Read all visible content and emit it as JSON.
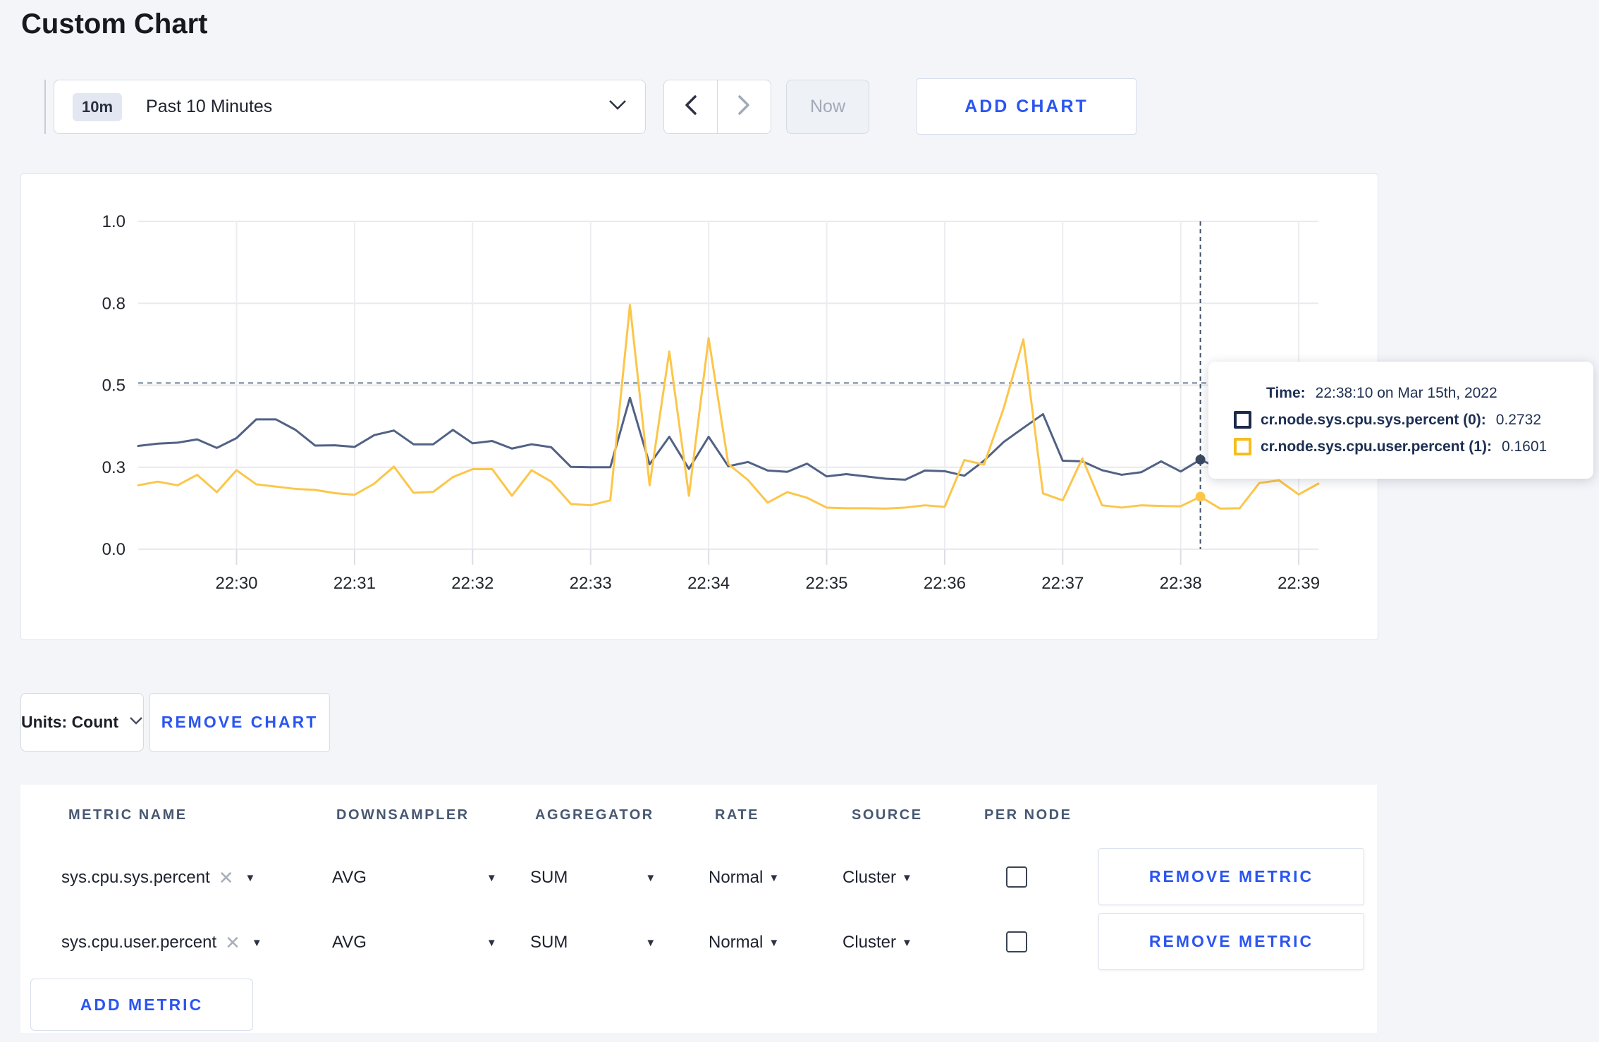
{
  "page": {
    "title": "Custom Chart"
  },
  "controls": {
    "range_badge": "10m",
    "range_label": "Past 10 Minutes",
    "now_label": "Now",
    "add_chart_label": "ADD CHART"
  },
  "chart_data": {
    "type": "line",
    "title": "",
    "xlabel": "",
    "ylabel": "",
    "ylim": [
      0,
      1
    ],
    "grid": true,
    "x_start": "22:29:10",
    "x_end": "22:39:10",
    "interval_seconds": 10,
    "yticks": [
      {
        "v": 0.0,
        "label": "0.0"
      },
      {
        "v": 0.25,
        "label": "0.3"
      },
      {
        "v": 0.5,
        "label": "0.5"
      },
      {
        "v": 0.75,
        "label": "0.8"
      },
      {
        "v": 1.0,
        "label": "1.0"
      }
    ],
    "xticks": [
      {
        "i": 5,
        "label": "22:30"
      },
      {
        "i": 11,
        "label": "22:31"
      },
      {
        "i": 17,
        "label": "22:32"
      },
      {
        "i": 23,
        "label": "22:33"
      },
      {
        "i": 29,
        "label": "22:34"
      },
      {
        "i": 35,
        "label": "22:35"
      },
      {
        "i": 41,
        "label": "22:36"
      },
      {
        "i": 47,
        "label": "22:37"
      },
      {
        "i": 53,
        "label": "22:38"
      },
      {
        "i": 59,
        "label": "22:39"
      }
    ],
    "series": [
      {
        "name": "cr.node.sys.cpu.sys.percent",
        "color": "#516284",
        "values": [
          0.315,
          0.322,
          0.325,
          0.335,
          0.309,
          0.339,
          0.396,
          0.396,
          0.364,
          0.316,
          0.317,
          0.312,
          0.348,
          0.362,
          0.32,
          0.32,
          0.364,
          0.323,
          0.33,
          0.307,
          0.32,
          0.311,
          0.251,
          0.25,
          0.25,
          0.462,
          0.259,
          0.343,
          0.245,
          0.343,
          0.253,
          0.266,
          0.24,
          0.236,
          0.261,
          0.222,
          0.229,
          0.222,
          0.215,
          0.212,
          0.24,
          0.238,
          0.224,
          0.27,
          0.327,
          0.37,
          0.412,
          0.27,
          0.268,
          0.241,
          0.227,
          0.235,
          0.268,
          0.237,
          0.2732,
          0.246,
          0.252,
          0.26,
          0.255,
          0.262,
          0.27
        ]
      },
      {
        "name": "cr.node.sys.cpu.user.percent",
        "color": "#fcc64a",
        "values": [
          0.195,
          0.206,
          0.195,
          0.227,
          0.174,
          0.241,
          0.198,
          0.191,
          0.184,
          0.181,
          0.171,
          0.166,
          0.2,
          0.252,
          0.172,
          0.175,
          0.22,
          0.244,
          0.244,
          0.163,
          0.241,
          0.206,
          0.138,
          0.134,
          0.149,
          0.745,
          0.195,
          0.603,
          0.163,
          0.644,
          0.26,
          0.211,
          0.142,
          0.174,
          0.157,
          0.127,
          0.125,
          0.125,
          0.124,
          0.127,
          0.134,
          0.129,
          0.272,
          0.258,
          0.43,
          0.64,
          0.17,
          0.149,
          0.277,
          0.134,
          0.127,
          0.134,
          0.132,
          0.131,
          0.1601,
          0.124,
          0.125,
          0.202,
          0.21,
          0.167,
          0.2
        ]
      }
    ],
    "crosshair": {
      "index": 54,
      "time": "22:38:10",
      "y_value": 0.507,
      "points": [
        {
          "value": 0.2732,
          "color": "#3a4860"
        },
        {
          "value": 0.1601,
          "color": "#fcc64a"
        }
      ]
    }
  },
  "tooltip": {
    "time_label": "Time:",
    "time_value": "22:38:10 on Mar 15th, 2022",
    "series": [
      {
        "label": "cr.node.sys.cpu.sys.percent (0):",
        "value": "0.2732",
        "swatch_color": "#1b2a4a"
      },
      {
        "label": "cr.node.sys.cpu.user.percent (1):",
        "value": "0.1601",
        "swatch_color": "#f5bd1f"
      }
    ]
  },
  "units_bar": {
    "units_label": "Units: Count",
    "remove_chart_label": "REMOVE CHART"
  },
  "metrics_table": {
    "headers": [
      "METRIC NAME",
      "DOWNSAMPLER",
      "AGGREGATOR",
      "RATE",
      "SOURCE",
      "PER NODE"
    ],
    "rows": [
      {
        "metric": "sys.cpu.sys.percent",
        "downsampler": "AVG",
        "aggregator": "SUM",
        "rate": "Normal",
        "source": "Cluster",
        "per_node_checked": false,
        "remove_label": "REMOVE METRIC"
      },
      {
        "metric": "sys.cpu.user.percent",
        "downsampler": "AVG",
        "aggregator": "SUM",
        "rate": "Normal",
        "source": "Cluster",
        "per_node_checked": false,
        "remove_label": "REMOVE METRIC"
      }
    ],
    "add_metric_label": "ADD METRIC"
  },
  "colors": {
    "accent_blue": "#2b55f0",
    "series_sys": "#516284",
    "series_user": "#fcc64a",
    "tooltip_text": "#1d2f52"
  }
}
